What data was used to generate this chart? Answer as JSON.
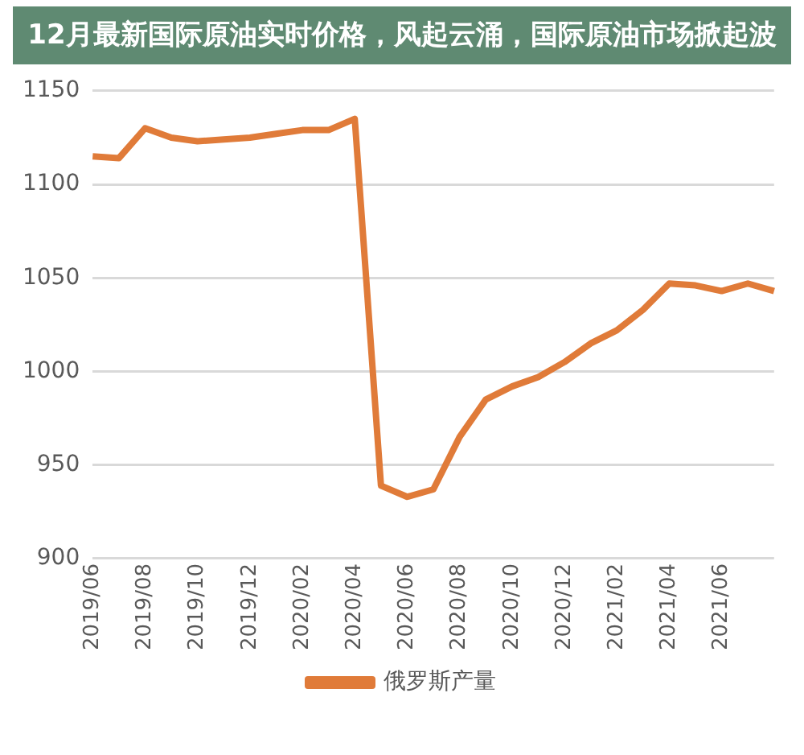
{
  "chart_data": {
    "type": "line",
    "title": "12月最新国际原油实时价格，风起云涌，国际原油市场掀起波",
    "categories": [
      "2019/06",
      null,
      "2019/08",
      null,
      "2019/10",
      null,
      "2019/12",
      null,
      "2020/02",
      null,
      "2020/04",
      null,
      "2020/06",
      null,
      "2020/08",
      null,
      "2020/10",
      null,
      "2020/12",
      null,
      "2021/02",
      null,
      "2021/04",
      null,
      "2021/06",
      null,
      null
    ],
    "series": [
      {
        "name": "俄罗斯产量",
        "color": "#e07b39",
        "values": [
          1115,
          1114,
          1130,
          1125,
          1123,
          1124,
          1125,
          1127,
          1129,
          1129,
          1135,
          939,
          933,
          937,
          965,
          985,
          992,
          997,
          1005,
          1015,
          1022,
          1033,
          1047,
          1046,
          1043,
          1047,
          1043
        ]
      }
    ],
    "ylim": [
      900,
      1150
    ],
    "yticks": [
      900,
      950,
      1000,
      1050,
      1100,
      1150
    ],
    "grid": "y",
    "legend": "bottom",
    "marker": "none",
    "line_style": "solid"
  }
}
